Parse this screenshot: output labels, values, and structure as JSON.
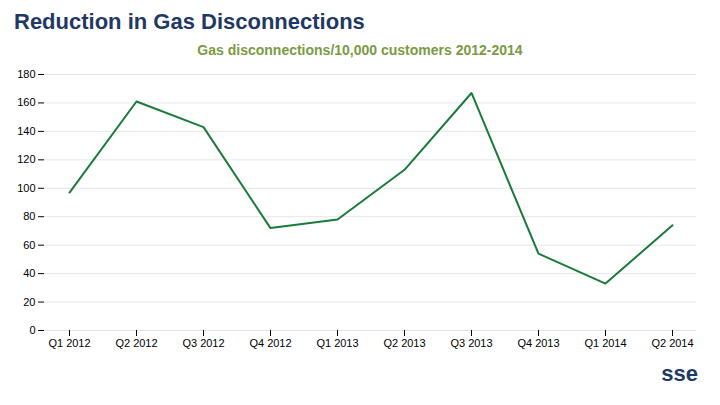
{
  "chart_data": {
    "type": "line",
    "title": "Reduction in Gas Disconnections",
    "subtitle": "Gas disconnections/10,000 customers 2012-2014",
    "categories": [
      "Q1 2012",
      "Q2 2012",
      "Q3 2012",
      "Q4 2012",
      "Q1 2013",
      "Q2 2013",
      "Q3 2013",
      "Q4 2013",
      "Q1 2014",
      "Q2 2014"
    ],
    "values": [
      97,
      161,
      143,
      72,
      78,
      113,
      167,
      54,
      33,
      74
    ],
    "color": "#1a7a3a",
    "ylim": [
      0,
      180
    ],
    "yticks": [
      0,
      20,
      40,
      60,
      80,
      100,
      120,
      140,
      160,
      180
    ],
    "grid": true,
    "annotations": [
      "sse"
    ]
  }
}
